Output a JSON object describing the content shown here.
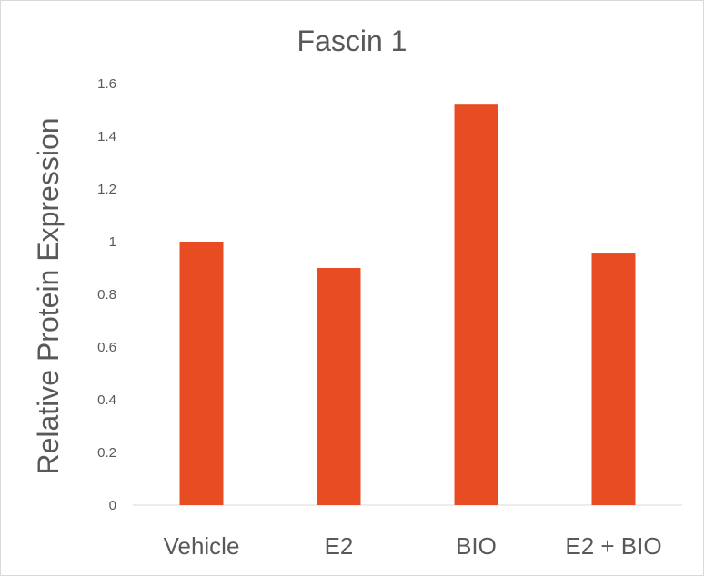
{
  "chart_data": {
    "type": "bar",
    "title": "Fascin 1",
    "xlabel": "",
    "ylabel": "Relative Protein Expression",
    "categories": [
      "Vehicle",
      "E2",
      "BIO",
      "E2 + BIO"
    ],
    "values": [
      1.0,
      0.9,
      1.52,
      0.955
    ],
    "ylim": [
      0,
      1.6
    ],
    "yticks": [
      "0",
      "0.2",
      "0.4",
      "0.6",
      "0.8",
      "1",
      "1.2",
      "1.4",
      "1.6"
    ],
    "grid": false,
    "legend": "none",
    "bar_color": "#E84C22"
  }
}
